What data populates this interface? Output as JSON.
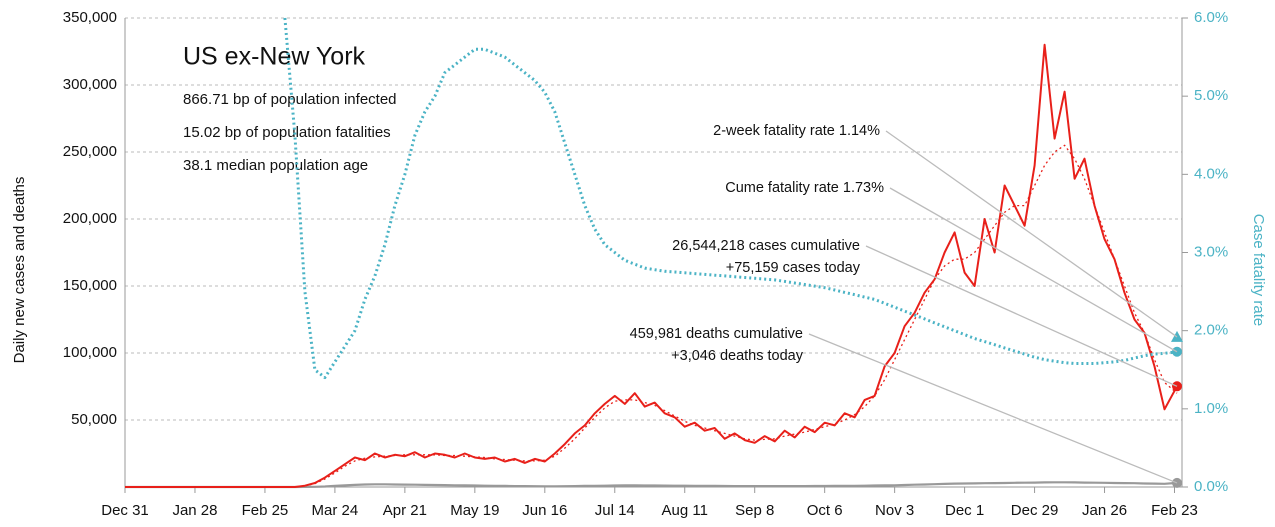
{
  "chart_data": {
    "type": "line",
    "title": "US ex-New York",
    "subtitles": [
      "866.71 bp of population infected",
      "15.02 bp of population fatalities",
      "38.1 median population age"
    ],
    "ylabel": "Daily new cases and deaths",
    "y2label": "Case fatality rate",
    "xlim": [
      0,
      423
    ],
    "xticks": [
      {
        "value": 0,
        "label": "Dec 31"
      },
      {
        "value": 28,
        "label": "Jan 28"
      },
      {
        "value": 56,
        "label": "Feb 25"
      },
      {
        "value": 84,
        "label": "Mar 24"
      },
      {
        "value": 112,
        "label": "Apr 21"
      },
      {
        "value": 140,
        "label": "May 19"
      },
      {
        "value": 168,
        "label": "Jun 16"
      },
      {
        "value": 196,
        "label": "Jul 14"
      },
      {
        "value": 224,
        "label": "Aug 11"
      },
      {
        "value": 252,
        "label": "Sep 8"
      },
      {
        "value": 280,
        "label": "Oct 6"
      },
      {
        "value": 308,
        "label": "Nov 3"
      },
      {
        "value": 336,
        "label": "Dec 1"
      },
      {
        "value": 364,
        "label": "Dec 29"
      },
      {
        "value": 392,
        "label": "Jan 26"
      },
      {
        "value": 420,
        "label": "Feb 23"
      }
    ],
    "ylim": [
      0,
      350000
    ],
    "yticks": [
      {
        "value": 50000,
        "label": "50,000"
      },
      {
        "value": 100000,
        "label": "100,000"
      },
      {
        "value": 150000,
        "label": "150,000"
      },
      {
        "value": 200000,
        "label": "200,000"
      },
      {
        "value": 250000,
        "label": "250,000"
      },
      {
        "value": 300000,
        "label": "300,000"
      },
      {
        "value": 350000,
        "label": "350,000"
      }
    ],
    "y2lim": [
      0,
      6
    ],
    "y2ticks": [
      {
        "value": 0,
        "label": "0.0%"
      },
      {
        "value": 1,
        "label": "1.0%"
      },
      {
        "value": 2,
        "label": "2.0%"
      },
      {
        "value": 3,
        "label": "3.0%"
      },
      {
        "value": 4,
        "label": "4.0%"
      },
      {
        "value": 5,
        "label": "5.0%"
      },
      {
        "value": 6,
        "label": "6.0%"
      }
    ],
    "grid": true,
    "x": [
      0,
      4,
      8,
      12,
      16,
      20,
      24,
      28,
      32,
      36,
      40,
      44,
      48,
      52,
      56,
      60,
      64,
      68,
      72,
      76,
      80,
      84,
      88,
      92,
      96,
      100,
      104,
      108,
      112,
      116,
      120,
      124,
      128,
      132,
      136,
      140,
      144,
      148,
      152,
      156,
      160,
      164,
      168,
      172,
      176,
      180,
      184,
      188,
      192,
      196,
      200,
      204,
      208,
      212,
      216,
      220,
      224,
      228,
      232,
      236,
      240,
      244,
      248,
      252,
      256,
      260,
      264,
      268,
      272,
      276,
      280,
      284,
      288,
      292,
      296,
      300,
      304,
      308,
      312,
      316,
      320,
      324,
      328,
      332,
      336,
      340,
      344,
      348,
      352,
      356,
      360,
      364,
      368,
      372,
      376,
      380,
      384,
      388,
      392,
      396,
      400,
      404,
      408,
      412,
      416,
      421
    ],
    "series": [
      {
        "color": "#999999",
        "style": "solid",
        "width": 2.2,
        "end_marker": true,
        "values": [
          0,
          0,
          0,
          0,
          0,
          0,
          0,
          0,
          0,
          0,
          0,
          0,
          0,
          0,
          0,
          0,
          0,
          0,
          50,
          150,
          400,
          800,
          1200,
          1600,
          1900,
          2000,
          2000,
          1900,
          1800,
          1700,
          1600,
          1500,
          1400,
          1300,
          1200,
          1100,
          1000,
          900,
          800,
          700,
          650,
          600,
          550,
          550,
          600,
          700,
          800,
          900,
          1000,
          1100,
          1200,
          1200,
          1150,
          1100,
          1050,
          1000,
          950,
          900,
          850,
          800,
          750,
          700,
          700,
          650,
          650,
          650,
          700,
          700,
          700,
          750,
          750,
          800,
          850,
          900,
          1000,
          1100,
          1200,
          1300,
          1500,
          1700,
          1900,
          2100,
          2300,
          2500,
          2600,
          2700,
          2800,
          2900,
          3000,
          3100,
          3200,
          3300,
          3400,
          3500,
          3500,
          3400,
          3300,
          3200,
          3100,
          3000,
          2900,
          2800,
          2600,
          2500,
          2400,
          3046
        ]
      },
      {
        "color": "#e8201a",
        "style": "dotted",
        "width": 1.3,
        "end_marker": false,
        "values": [
          null,
          null,
          null,
          null,
          null,
          null,
          null,
          null,
          null,
          null,
          null,
          null,
          null,
          null,
          null,
          null,
          null,
          null,
          800,
          2500,
          6000,
          10500,
          15500,
          19500,
          21500,
          22500,
          23000,
          23500,
          24000,
          24000,
          24000,
          24000,
          23500,
          23500,
          23000,
          22500,
          22000,
          21000,
          20500,
          20000,
          19500,
          19500,
          20000,
          23000,
          29000,
          36000,
          44000,
          52000,
          59000,
          64000,
          65000,
          65000,
          63000,
          61000,
          57000,
          53000,
          49000,
          46000,
          44000,
          42000,
          40000,
          38000,
          36000,
          35000,
          35500,
          36000,
          38000,
          39500,
          41000,
          43000,
          45000,
          47000,
          50000,
          54000,
          60000,
          68000,
          80000,
          95000,
          110000,
          125000,
          140000,
          155000,
          165000,
          170000,
          170000,
          175000,
          185000,
          195000,
          205000,
          210000,
          210000,
          225000,
          240000,
          250000,
          255000,
          245000,
          230000,
          210000,
          190000,
          170000,
          150000,
          130000,
          115000,
          95000,
          78000,
          70000
        ]
      },
      {
        "color": "#e8201a",
        "style": "solid",
        "width": 2,
        "end_marker": true,
        "values": [
          0,
          0,
          0,
          0,
          0,
          0,
          0,
          0,
          0,
          0,
          0,
          0,
          0,
          0,
          0,
          0,
          0,
          0,
          1000,
          3000,
          7000,
          12000,
          17000,
          22000,
          20000,
          25000,
          22000,
          24000,
          23000,
          26000,
          22000,
          25000,
          24000,
          22000,
          25000,
          22000,
          21000,
          22000,
          19000,
          21000,
          18000,
          21000,
          19000,
          25000,
          32000,
          40000,
          46000,
          55000,
          62000,
          68000,
          62000,
          70000,
          60000,
          63000,
          55000,
          52000,
          45000,
          48000,
          42000,
          44000,
          36000,
          40000,
          35000,
          33000,
          38000,
          34000,
          42000,
          37000,
          45000,
          41000,
          48000,
          46000,
          55000,
          52000,
          65000,
          68000,
          90000,
          100000,
          120000,
          130000,
          145000,
          155000,
          175000,
          190000,
          160000,
          150000,
          200000,
          175000,
          225000,
          210000,
          195000,
          240000,
          330000,
          260000,
          295000,
          230000,
          245000,
          210000,
          185000,
          170000,
          145000,
          125000,
          115000,
          90000,
          58000,
          75159
        ]
      },
      {
        "color": "#4bb3c5",
        "style": "dotted",
        "width": 3,
        "end_marker": true,
        "axis": "y2",
        "values": [
          null,
          null,
          null,
          null,
          null,
          null,
          null,
          null,
          null,
          null,
          null,
          null,
          null,
          null,
          null,
          null,
          6.0,
          4.5,
          2.5,
          1.5,
          1.4,
          1.6,
          1.8,
          2.0,
          2.4,
          2.7,
          3.1,
          3.6,
          4.0,
          4.5,
          4.8,
          5.0,
          5.3,
          5.4,
          5.5,
          5.6,
          5.6,
          5.55,
          5.5,
          5.4,
          5.3,
          5.2,
          5.05,
          4.8,
          4.4,
          4.0,
          3.6,
          3.3,
          3.1,
          3.0,
          2.9,
          2.85,
          2.8,
          2.78,
          2.76,
          2.75,
          2.74,
          2.73,
          2.72,
          2.71,
          2.7,
          2.69,
          2.68,
          2.67,
          2.66,
          2.65,
          2.63,
          2.61,
          2.59,
          2.57,
          2.55,
          2.52,
          2.49,
          2.46,
          2.43,
          2.4,
          2.35,
          2.3,
          2.25,
          2.2,
          2.15,
          2.1,
          2.05,
          2.0,
          1.95,
          1.9,
          1.86,
          1.82,
          1.78,
          1.74,
          1.7,
          1.66,
          1.63,
          1.61,
          1.59,
          1.58,
          1.58,
          1.58,
          1.59,
          1.6,
          1.62,
          1.65,
          1.68,
          1.7,
          1.71,
          1.73
        ]
      }
    ],
    "annotations": [
      {
        "lines": [
          "2-week fatality rate 1.14%"
        ],
        "y2": 1.92,
        "color": "#4bb3c5"
      },
      {
        "lines": [
          "Cume fatality rate 1.73%"
        ],
        "series": 3
      },
      {
        "lines": [
          "26,544,218 cases cumulative",
          "+75,159 cases today"
        ],
        "series": 2
      },
      {
        "lines": [
          "459,981 deaths cumulative",
          "+3,046 deaths today"
        ],
        "series": 0
      }
    ]
  }
}
